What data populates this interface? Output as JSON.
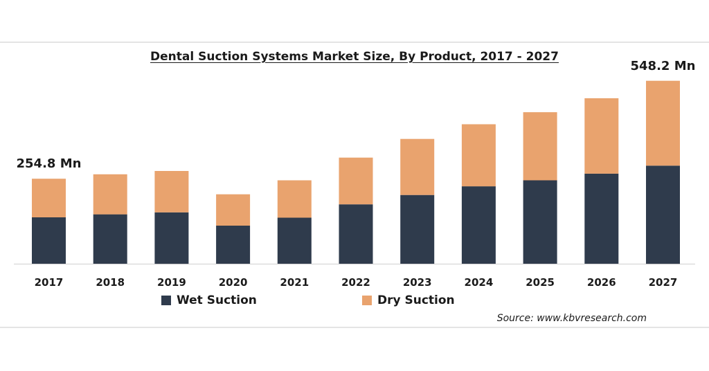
{
  "chart_data": {
    "type": "bar",
    "stacked": true,
    "title": "Dental Suction Systems Market Size, By Product, 2017 - 2027",
    "categories": [
      "2017",
      "2018",
      "2019",
      "2020",
      "2021",
      "2022",
      "2023",
      "2024",
      "2025",
      "2026",
      "2027"
    ],
    "series": [
      {
        "name": "Wet Suction",
        "color": "#2f3b4c",
        "values": [
          139,
          148,
          154,
          114,
          138,
          178,
          206,
          232,
          250,
          270,
          294
        ]
      },
      {
        "name": "Dry Suction",
        "color": "#e9a36e",
        "values": [
          115.8,
          120,
          124,
          94,
          112,
          140,
          168,
          186,
          204,
          226,
          254.2
        ]
      }
    ],
    "annotations": [
      {
        "category": "2017",
        "text": "254.8 Mn"
      },
      {
        "category": "2027",
        "text": "548.2 Mn"
      }
    ],
    "ylim": [
      0,
      560
    ],
    "xlabel": "",
    "ylabel": "",
    "grid": false,
    "legend_position": "bottom"
  },
  "source_text": "Source: www.kbvresearch.com"
}
